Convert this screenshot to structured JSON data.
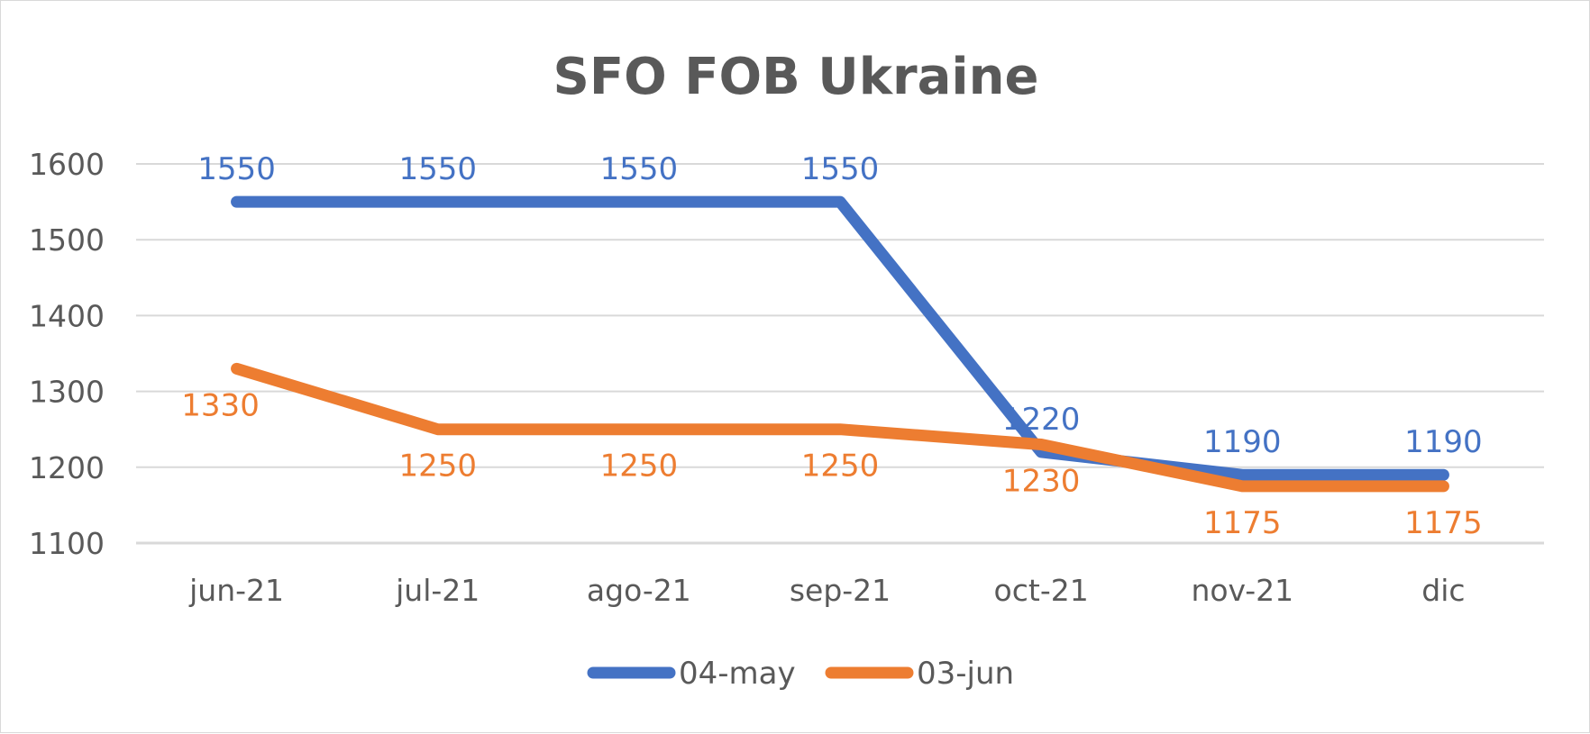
{
  "chart_data": {
    "type": "line",
    "title": "SFO FOB Ukraine",
    "categories": [
      "jun-21",
      "jul-21",
      "ago-21",
      "sep-21",
      "oct-21",
      "nov-21",
      "dic"
    ],
    "ylim": [
      1100,
      1600
    ],
    "yticks": [
      1100,
      1200,
      1300,
      1400,
      1500,
      1600
    ],
    "grid": true,
    "legend_position": "bottom",
    "series": [
      {
        "name": "04-may",
        "color": "#4472C4",
        "values": [
          1550,
          1550,
          1550,
          1550,
          1220,
          1190,
          1190
        ],
        "label_side": "above"
      },
      {
        "name": "03-jun",
        "color": "#ED7D31",
        "values": [
          1330,
          1250,
          1250,
          1250,
          1230,
          1175,
          1175
        ],
        "label_side": "below"
      }
    ]
  }
}
